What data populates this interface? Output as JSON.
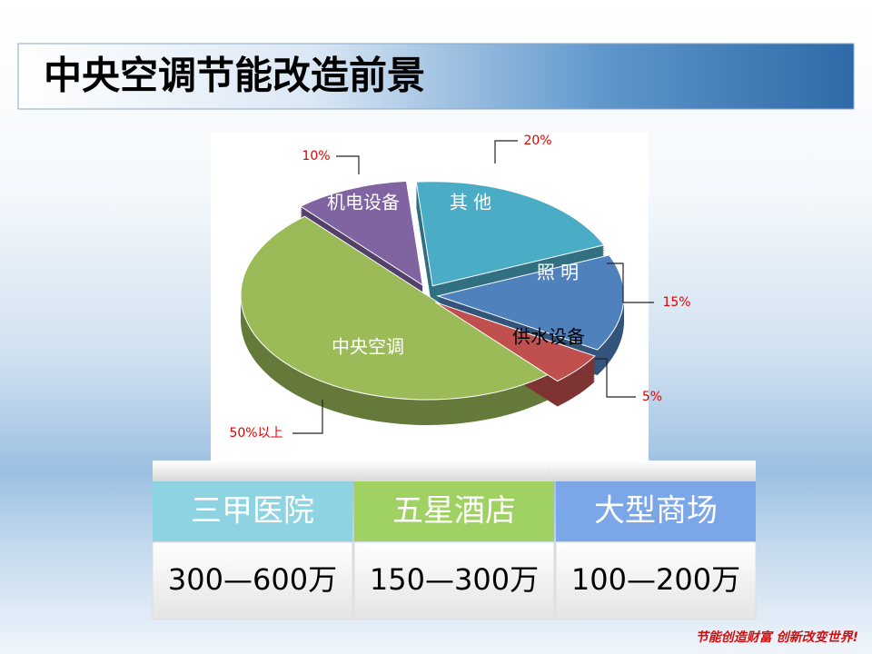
{
  "header": {
    "title": "中央空调节能改造前景"
  },
  "chart_data": {
    "type": "pie",
    "categories": [
      "中央空调",
      "机电设备",
      "其 他",
      "照 明",
      "供水设备"
    ],
    "values": [
      50,
      10,
      20,
      15,
      5
    ],
    "value_labels": [
      "50%以上",
      "10%",
      "20%",
      "15%",
      "5%"
    ],
    "colors": [
      "#9bbb59",
      "#8064a2",
      "#4bacc6",
      "#4f81bd",
      "#c0504d"
    ]
  },
  "table": {
    "header": [
      "三甲医院",
      "五星酒店",
      "大型商场"
    ],
    "rows": [
      [
        "300—600万",
        "150—300万",
        "100—200万"
      ]
    ]
  },
  "footer": "节能创造财富 创新改变世界!"
}
